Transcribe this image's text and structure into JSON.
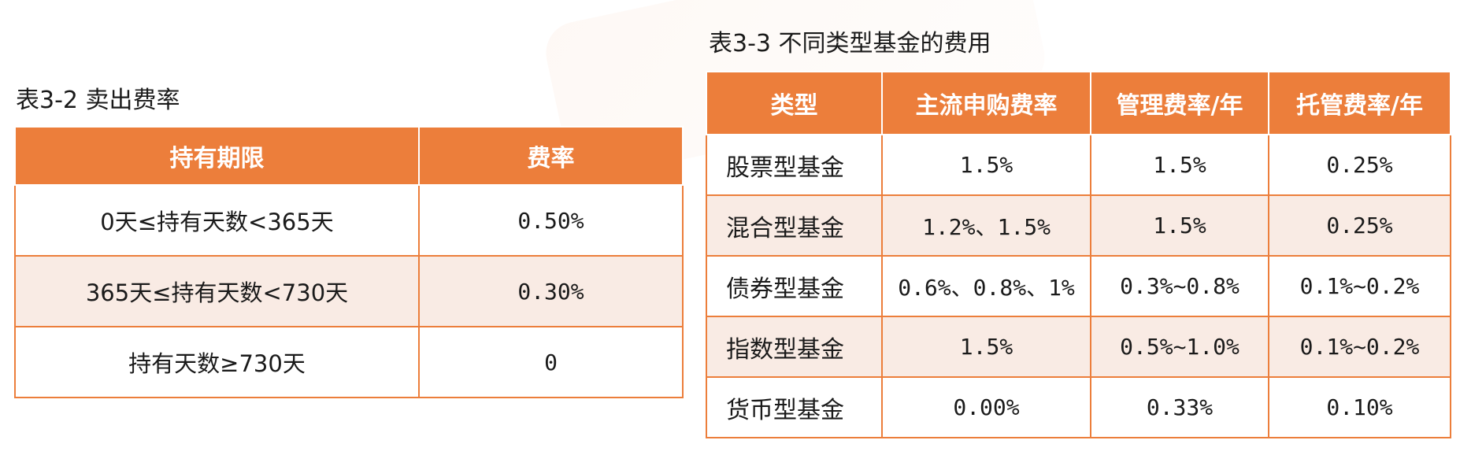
{
  "left_table": {
    "caption": "表3-2 卖出费率",
    "headers": [
      "持有期限",
      "费率"
    ],
    "rows": [
      [
        "0天≤持有天数<365天",
        "0.50%"
      ],
      [
        "365天≤持有天数<730天",
        "0.30%"
      ],
      [
        "持有天数≥730天",
        "0"
      ]
    ]
  },
  "right_table": {
    "caption": "表3-3 不同类型基金的费用",
    "headers": [
      "类型",
      "主流申购费率",
      "管理费率/年",
      "托管费率/年"
    ],
    "rows": [
      [
        "股票型基金",
        "1.5%",
        "1.5%",
        "0.25%"
      ],
      [
        "混合型基金",
        "1.2%、1.5%",
        "1.5%",
        "0.25%"
      ],
      [
        "债券型基金",
        "0.6%、0.8%、1%",
        "0.3%~0.8%",
        "0.1%~0.2%"
      ],
      [
        "指数型基金",
        "1.5%",
        "0.5%~1.0%",
        "0.1%~0.2%"
      ],
      [
        "货币型基金",
        "0.00%",
        "0.33%",
        "0.10%"
      ]
    ]
  },
  "colors": {
    "header_bg": "#ec7e3b",
    "alt_row_bg": "#f9ebe4",
    "border": "#ec7e3b"
  }
}
